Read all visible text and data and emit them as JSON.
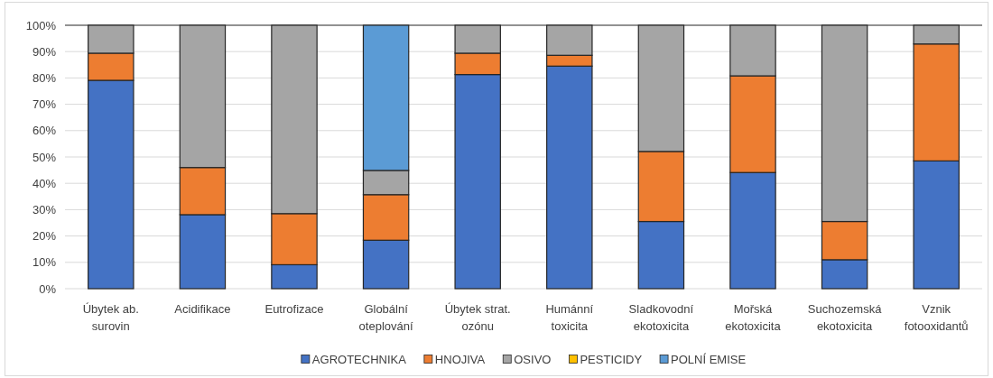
{
  "chart_data": {
    "type": "bar",
    "stacked": true,
    "categories": [
      "Úbytek ab. surovin",
      "Acidifikace",
      "Eutrofizace",
      "Globální oteplování",
      "Úbytek strat. ozónu",
      "Humánní toxicita",
      "Sladkovodní ekotoxicita",
      "Mořská ekotoxicita",
      "Suchozemská ekotoxicita",
      "Vznik fotooxidantů"
    ],
    "series": [
      {
        "name": "AGROTECHNIKA",
        "color": "#4472c4",
        "values": [
          79.1,
          28.1,
          9.1,
          18.4,
          81.3,
          84.5,
          25.5,
          44.1,
          11.0,
          48.5
        ]
      },
      {
        "name": "HNOJIVA",
        "color": "#ed7d31",
        "values": [
          10.3,
          17.9,
          19.4,
          17.3,
          8.1,
          4.1,
          26.6,
          36.7,
          14.5,
          44.4
        ]
      },
      {
        "name": "OSIVO",
        "color": "#a5a5a5",
        "values": [
          10.6,
          54.0,
          71.5,
          9.2,
          10.6,
          11.4,
          47.9,
          19.2,
          74.5,
          7.1
        ]
      },
      {
        "name": "PESTICIDY",
        "color": "#ffc000",
        "values": [
          0,
          0,
          0,
          0,
          0,
          0,
          0,
          0,
          0,
          0
        ]
      },
      {
        "name": "POLNÍ EMISE",
        "color": "#5b9bd5",
        "values": [
          0,
          0,
          0,
          55.1,
          0,
          0,
          0,
          0,
          0,
          0
        ]
      }
    ],
    "ylim": [
      0,
      100
    ],
    "yticks": [
      {
        "value": 0,
        "label": "0%"
      },
      {
        "value": 10,
        "label": "10%"
      },
      {
        "value": 20,
        "label": "20%"
      },
      {
        "value": 30,
        "label": "30%"
      },
      {
        "value": 40,
        "label": "40%"
      },
      {
        "value": 50,
        "label": "50%"
      },
      {
        "value": 60,
        "label": "60%"
      },
      {
        "value": 70,
        "label": "70%"
      },
      {
        "value": 80,
        "label": "80%"
      },
      {
        "value": 90,
        "label": "90%"
      },
      {
        "value": 100,
        "label": "100%"
      }
    ],
    "grid": "y",
    "legend": "bottom"
  }
}
